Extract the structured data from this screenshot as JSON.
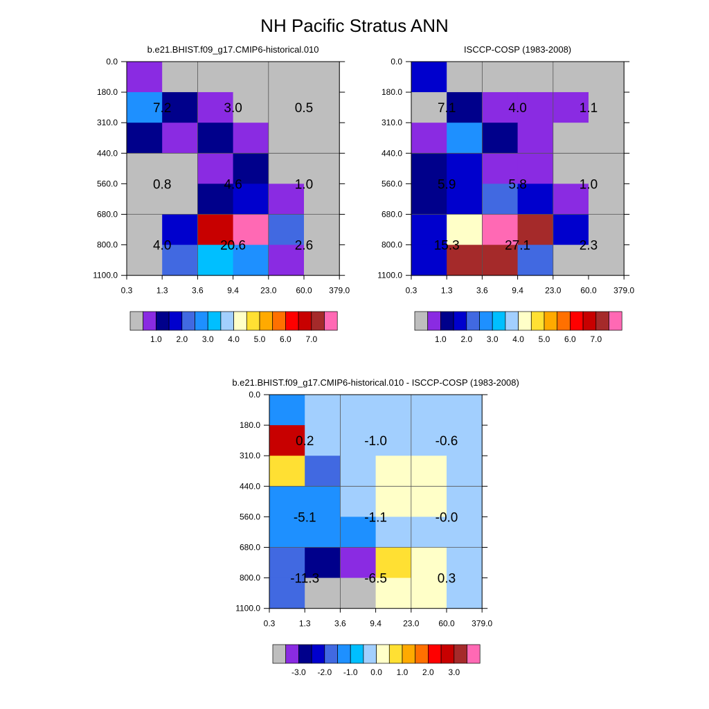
{
  "page_title": "NH Pacific Stratus ANN",
  "x_tick_labels": [
    "0.3",
    "1.3",
    "3.6",
    "9.4",
    "23.0",
    "60.0",
    "379.0"
  ],
  "y_tick_labels": [
    "0.0",
    "180.0",
    "310.0",
    "440.0",
    "560.0",
    "680.0",
    "800.0",
    "1100.0"
  ],
  "abs_colorbar": {
    "colors": [
      "#BEBEBE",
      "#8A2BE2",
      "#00008B",
      "#0000CD",
      "#4169E1",
      "#1E90FF",
      "#00BFFF",
      "#A2CFFE",
      "#FFFFC8",
      "#FFE033",
      "#FFAA00",
      "#FF7000",
      "#FF0000",
      "#C80000",
      "#A52A2A",
      "#FF69B4"
    ],
    "labels": [
      "1.0",
      "2.0",
      "3.0",
      "4.0",
      "5.0",
      "6.0",
      "7.0"
    ]
  },
  "diff_colorbar": {
    "colors": [
      "#BEBEBE",
      "#8A2BE2",
      "#00008B",
      "#0000CD",
      "#4169E1",
      "#1E90FF",
      "#00BFFF",
      "#A2CFFE",
      "#FFFFC8",
      "#FFE033",
      "#FFAA00",
      "#FF7000",
      "#FF0000",
      "#C80000",
      "#A52A2A",
      "#FF69B4"
    ],
    "labels": [
      "-3.0",
      "-2.0",
      "-1.0",
      "0.0",
      "1.0",
      "2.0",
      "3.0"
    ]
  },
  "chart_data": [
    {
      "type": "heatmap",
      "title": "b.e21.BHIST.f09_g17.CMIP6-historical.010",
      "x_bins": [
        "0.3",
        "1.3",
        "3.6",
        "9.4",
        "23.0",
        "60.0",
        "379.0"
      ],
      "y_bins": [
        "0.0",
        "180.0",
        "310.0",
        "440.0",
        "560.0",
        "680.0",
        "800.0",
        "1100.0"
      ],
      "grid_colors": [
        [
          "#8A2BE2",
          "#BEBEBE",
          "#BEBEBE",
          "#BEBEBE",
          "#BEBEBE",
          "#BEBEBE"
        ],
        [
          "#1E90FF",
          "#00008B",
          "#8A2BE2",
          "#BEBEBE",
          "#BEBEBE",
          "#BEBEBE"
        ],
        [
          "#00008B",
          "#8A2BE2",
          "#00008B",
          "#8A2BE2",
          "#BEBEBE",
          "#BEBEBE"
        ],
        [
          "#BEBEBE",
          "#BEBEBE",
          "#8A2BE2",
          "#00008B",
          "#BEBEBE",
          "#BEBEBE"
        ],
        [
          "#BEBEBE",
          "#BEBEBE",
          "#00008B",
          "#0000CD",
          "#8A2BE2",
          "#BEBEBE"
        ],
        [
          "#BEBEBE",
          "#0000CD",
          "#C80000",
          "#FF69B4",
          "#4169E1",
          "#BEBEBE"
        ],
        [
          "#BEBEBE",
          "#4169E1",
          "#00BFFF",
          "#1E90FF",
          "#8A2BE2",
          "#BEBEBE"
        ]
      ],
      "block_values": [
        [
          "7.2",
          "3.0",
          "0.5"
        ],
        [
          "0.8",
          "4.6",
          "1.0"
        ],
        [
          "4.0",
          "20.6",
          "2.6"
        ]
      ]
    },
    {
      "type": "heatmap",
      "title": "ISCCP-COSP (1983-2008)",
      "x_bins": [
        "0.3",
        "1.3",
        "3.6",
        "9.4",
        "23.0",
        "60.0",
        "379.0"
      ],
      "y_bins": [
        "0.0",
        "180.0",
        "310.0",
        "440.0",
        "560.0",
        "680.0",
        "800.0",
        "1100.0"
      ],
      "grid_colors": [
        [
          "#0000CD",
          "#BEBEBE",
          "#BEBEBE",
          "#BEBEBE",
          "#BEBEBE",
          "#BEBEBE"
        ],
        [
          "#BEBEBE",
          "#00008B",
          "#8A2BE2",
          "#8A2BE2",
          "#8A2BE2",
          "#BEBEBE"
        ],
        [
          "#8A2BE2",
          "#1E90FF",
          "#00008B",
          "#8A2BE2",
          "#BEBEBE",
          "#BEBEBE"
        ],
        [
          "#00008B",
          "#0000CD",
          "#8A2BE2",
          "#8A2BE2",
          "#BEBEBE",
          "#BEBEBE"
        ],
        [
          "#00008B",
          "#0000CD",
          "#4169E1",
          "#0000CD",
          "#8A2BE2",
          "#BEBEBE"
        ],
        [
          "#0000CD",
          "#FFFFC8",
          "#FF69B4",
          "#A52A2A",
          "#0000CD",
          "#BEBEBE"
        ],
        [
          "#0000CD",
          "#A52A2A",
          "#A52A2A",
          "#4169E1",
          "#BEBEBE",
          "#BEBEBE"
        ]
      ],
      "block_values": [
        [
          "7.1",
          "4.0",
          "1.1"
        ],
        [
          "5.9",
          "5.8",
          "1.0"
        ],
        [
          "15.3",
          "27.1",
          "2.3"
        ]
      ]
    },
    {
      "type": "heatmap",
      "title": "b.e21.BHIST.f09_g17.CMIP6-historical.010 - ISCCP-COSP (1983-2008)",
      "x_bins": [
        "0.3",
        "1.3",
        "3.6",
        "9.4",
        "23.0",
        "60.0",
        "379.0"
      ],
      "y_bins": [
        "0.0",
        "180.0",
        "310.0",
        "440.0",
        "560.0",
        "680.0",
        "800.0",
        "1100.0"
      ],
      "grid_colors": [
        [
          "#1E90FF",
          "#A2CFFE",
          "#A2CFFE",
          "#A2CFFE",
          "#A2CFFE",
          "#A2CFFE"
        ],
        [
          "#C80000",
          "#A2CFFE",
          "#A2CFFE",
          "#A2CFFE",
          "#A2CFFE",
          "#A2CFFE"
        ],
        [
          "#FFE033",
          "#4169E1",
          "#A2CFFE",
          "#FFFFC8",
          "#FFFFC8",
          "#A2CFFE"
        ],
        [
          "#1E90FF",
          "#1E90FF",
          "#A2CFFE",
          "#FFFFC8",
          "#FFFFC8",
          "#A2CFFE"
        ],
        [
          "#1E90FF",
          "#1E90FF",
          "#1E90FF",
          "#A2CFFE",
          "#A2CFFE",
          "#A2CFFE"
        ],
        [
          "#4169E1",
          "#00008B",
          "#8A2BE2",
          "#FFE033",
          "#FFFFC8",
          "#A2CFFE"
        ],
        [
          "#4169E1",
          "#BEBEBE",
          "#BEBEBE",
          "#FFFFC8",
          "#FFFFC8",
          "#A2CFFE"
        ]
      ],
      "block_values": [
        [
          "0.2",
          "-1.0",
          "-0.6"
        ],
        [
          "-5.1",
          "-1.1",
          "-0.0"
        ],
        [
          "-11.3",
          "-6.5",
          "0.3"
        ]
      ]
    }
  ]
}
